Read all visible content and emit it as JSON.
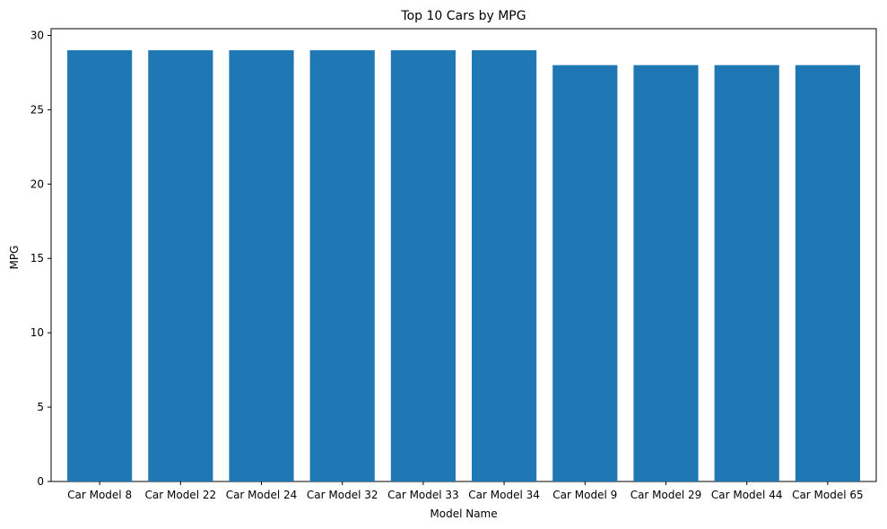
{
  "chart_data": {
    "type": "bar",
    "title": "Top 10 Cars by MPG",
    "xlabel": "Model Name",
    "ylabel": "MPG",
    "categories": [
      "Car Model 8",
      "Car Model 22",
      "Car Model 24",
      "Car Model 32",
      "Car Model 33",
      "Car Model 34",
      "Car Model 9",
      "Car Model 29",
      "Car Model 44",
      "Car Model 65"
    ],
    "values": [
      29,
      29,
      29,
      29,
      29,
      29,
      28,
      28,
      28,
      28
    ],
    "ylim": [
      0,
      30.45
    ],
    "yticks": [
      0,
      5,
      10,
      15,
      20,
      25,
      30
    ],
    "grid": false,
    "bar_color": "#1f77b4"
  }
}
